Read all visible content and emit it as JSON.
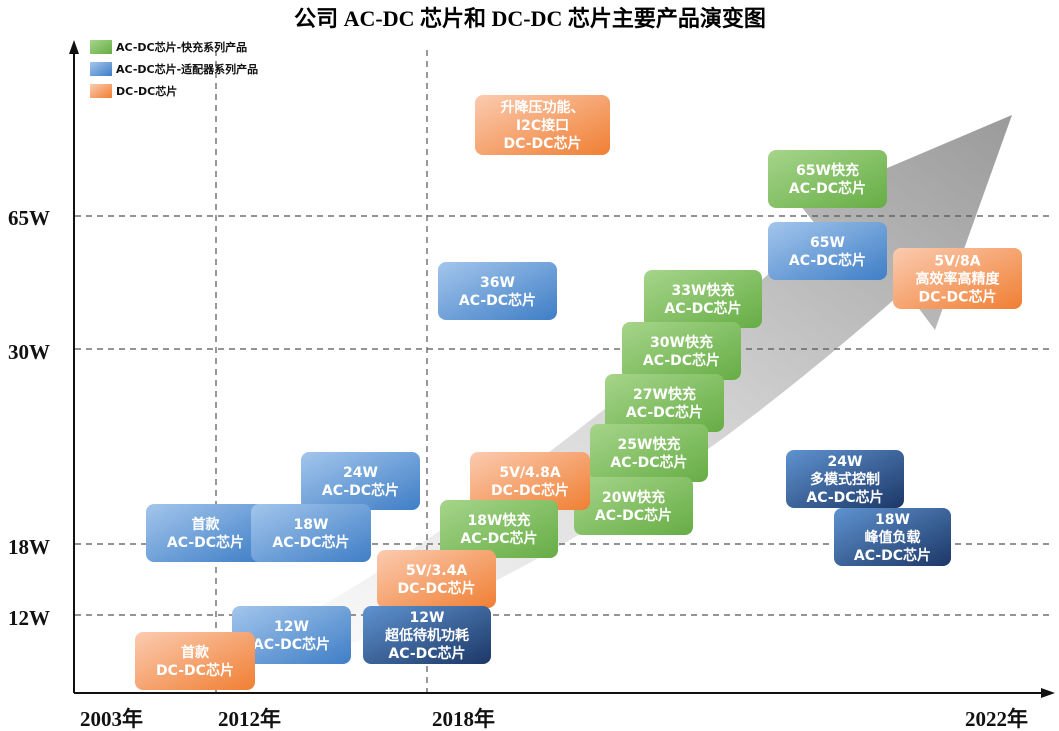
{
  "title": "公司 AC-DC 芯片和 DC-DC 芯片主要产品演变图",
  "legend": [
    "AC-DC芯片-快充系列产品",
    "AC-DC芯片-适配器系列产品",
    "DC-DC芯片"
  ],
  "y_labels": [
    "65W",
    "30W",
    "18W",
    "12W"
  ],
  "x_labels": [
    "2003年",
    "2012年",
    "2018年",
    "2022年"
  ],
  "boxes": [
    {
      "lines": [
        "升降压功能、",
        "I2C接口",
        "DC-DC芯片"
      ]
    },
    {
      "lines": [
        "65W快充",
        "AC-DC芯片"
      ]
    },
    {
      "lines": [
        "65W",
        "AC-DC芯片"
      ]
    },
    {
      "lines": [
        "5V/8A",
        "高效率高精度",
        "DC-DC芯片"
      ]
    },
    {
      "lines": [
        "36W",
        "AC-DC芯片"
      ]
    },
    {
      "lines": [
        "33W快充",
        "AC-DC芯片"
      ]
    },
    {
      "lines": [
        "30W快充",
        "AC-DC芯片"
      ]
    },
    {
      "lines": [
        "27W快充",
        "AC-DC芯片"
      ]
    },
    {
      "lines": [
        "25W快充",
        "AC-DC芯片"
      ]
    },
    {
      "lines": [
        "20W快充",
        "AC-DC芯片"
      ]
    },
    {
      "lines": [
        "5V/4.8A",
        "DC-DC芯片"
      ]
    },
    {
      "lines": [
        "24W",
        "AC-DC芯片"
      ]
    },
    {
      "lines": [
        "18W快充",
        "AC-DC芯片"
      ]
    },
    {
      "lines": [
        "首款",
        "AC-DC芯片"
      ]
    },
    {
      "lines": [
        "18W",
        "AC-DC芯片"
      ]
    },
    {
      "lines": [
        "5V/3.4A",
        "DC-DC芯片"
      ]
    },
    {
      "lines": [
        "12W",
        "AC-DC芯片"
      ]
    },
    {
      "lines": [
        "12W",
        "超低待机功耗",
        "AC-DC芯片"
      ]
    },
    {
      "lines": [
        "首款",
        "DC-DC芯片"
      ]
    },
    {
      "lines": [
        "24W",
        "多模式控制",
        "AC-DC芯片"
      ]
    },
    {
      "lines": [
        "18W",
        "峰值负载",
        "AC-DC芯片"
      ]
    }
  ]
}
